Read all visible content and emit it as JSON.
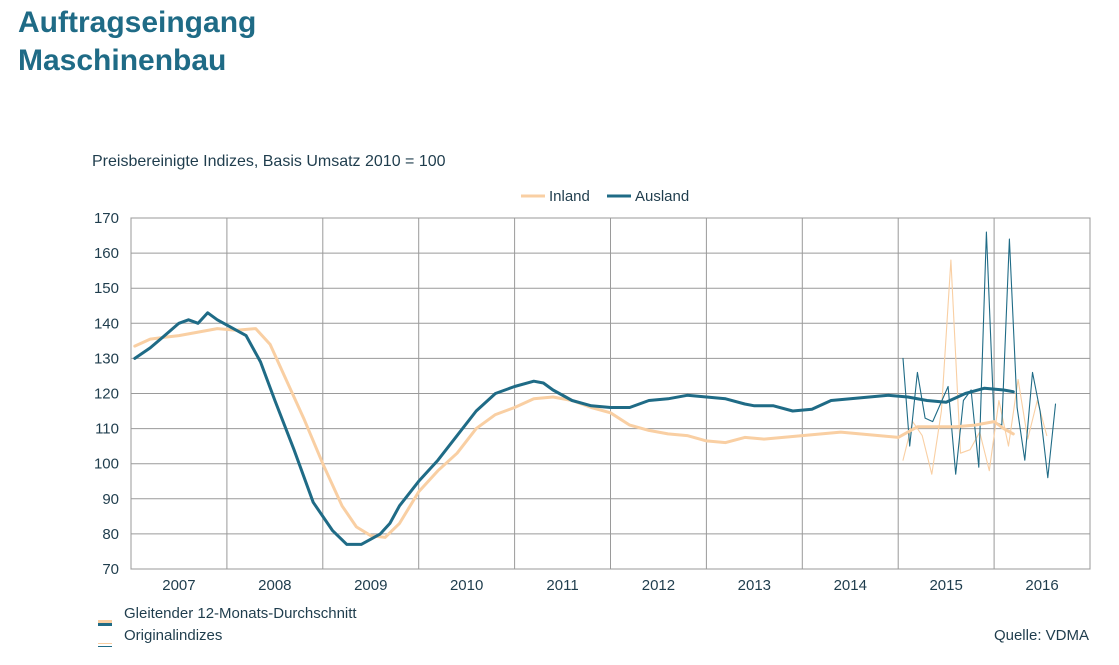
{
  "header": {
    "title_line1": "Auftragseingang",
    "title_line2": "Maschinenbau"
  },
  "chart_data": {
    "type": "line",
    "subtitle": "Preisbereinigte Indizes, Basis Umsatz 2010 = 100",
    "ylim": [
      70,
      170
    ],
    "yticks": [
      70,
      80,
      90,
      100,
      110,
      120,
      130,
      140,
      150,
      160,
      170
    ],
    "xlim": [
      2006.5,
      2016.5
    ],
    "xticks": [
      "2007",
      "2008",
      "2009",
      "2010",
      "2011",
      "2012",
      "2013",
      "2014",
      "2015",
      "2016"
    ],
    "grid": true,
    "legend_top": [
      {
        "name": "Inland",
        "color": "#f9cfa3"
      },
      {
        "name": "Ausland",
        "color": "#1f6b86"
      }
    ],
    "legend_bottom": [
      {
        "name": "Gleitender 12-Monats-Durchschnitt",
        "style": "thick"
      },
      {
        "name": "Originalindizes",
        "style": "thin"
      }
    ],
    "source": "Quelle: VDMA",
    "series": [
      {
        "name": "Inland",
        "kind": "moving_average",
        "color": "#f9cfa3",
        "x": [
          2006.54,
          2006.7,
          2006.85,
          2007.0,
          2007.2,
          2007.4,
          2007.6,
          2007.8,
          2007.95,
          2008.1,
          2008.3,
          2008.5,
          2008.7,
          2008.85,
          2009.0,
          2009.15,
          2009.3,
          2009.5,
          2009.7,
          2009.9,
          2010.1,
          2010.3,
          2010.5,
          2010.7,
          2010.9,
          2011.1,
          2011.3,
          2011.5,
          2011.7,
          2011.9,
          2012.1,
          2012.3,
          2012.5,
          2012.7,
          2012.9,
          2013.1,
          2013.3,
          2013.5,
          2013.7,
          2013.9,
          2014.1,
          2014.3,
          2014.5,
          2014.7,
          2014.9,
          2015.1,
          2015.3,
          2015.5,
          2015.6,
          2015.7
        ],
        "values": [
          133.5,
          135.5,
          136,
          136.5,
          137.5,
          138.5,
          138,
          138.5,
          134,
          125,
          113,
          100,
          88,
          82,
          79.5,
          79,
          83,
          92,
          98,
          103,
          110,
          114,
          116,
          118.5,
          119,
          118,
          116,
          114.5,
          111,
          109.5,
          108.5,
          108,
          106.5,
          106,
          107.5,
          107,
          107.5,
          108,
          108.5,
          109,
          108.5,
          108,
          107.5,
          110.5,
          110.5,
          110.5,
          111,
          112,
          110,
          108.5
        ]
      },
      {
        "name": "Ausland",
        "kind": "moving_average",
        "color": "#1f6b86",
        "x": [
          2006.54,
          2006.7,
          2006.85,
          2007.0,
          2007.1,
          2007.2,
          2007.3,
          2007.4,
          2007.6,
          2007.7,
          2007.85,
          2008.0,
          2008.2,
          2008.4,
          2008.6,
          2008.75,
          2008.9,
          2009.0,
          2009.1,
          2009.2,
          2009.3,
          2009.5,
          2009.7,
          2009.9,
          2010.1,
          2010.3,
          2010.5,
          2010.7,
          2010.8,
          2010.9,
          2011.1,
          2011.3,
          2011.5,
          2011.7,
          2011.9,
          2012.1,
          2012.3,
          2012.5,
          2012.7,
          2012.9,
          2013.0,
          2013.2,
          2013.4,
          2013.6,
          2013.8,
          2014.0,
          2014.2,
          2014.4,
          2014.6,
          2014.8,
          2015.0,
          2015.2,
          2015.4,
          2015.6,
          2015.7
        ],
        "values": [
          130,
          133,
          136.5,
          140,
          141,
          140,
          143,
          141,
          138,
          136.5,
          129,
          118,
          104,
          89,
          81,
          77,
          77,
          78.5,
          80,
          83,
          88,
          95,
          101,
          108,
          115,
          120,
          122,
          123.5,
          123,
          121,
          118,
          116.5,
          116,
          116,
          118,
          118.5,
          119.5,
          119,
          118.5,
          117,
          116.5,
          116.5,
          115,
          115.5,
          118,
          118.5,
          119,
          119.5,
          119,
          118,
          117.5,
          120,
          121.5,
          121,
          120.5
        ]
      },
      {
        "name": "Inland",
        "kind": "original",
        "color": "#f9cfa3",
        "x": [
          2014.55,
          2014.65,
          2014.75,
          2014.85,
          2014.95,
          2015.05,
          2015.15,
          2015.25,
          2015.35,
          2015.45,
          2015.55,
          2015.65,
          2015.75,
          2015.85,
          2015.95,
          2016.05
        ],
        "values": [
          101,
          112,
          108,
          97,
          115,
          158,
          103,
          104,
          109,
          98,
          118,
          105,
          124,
          107,
          118,
          108
        ]
      },
      {
        "name": "Ausland",
        "kind": "original",
        "color": "#1f6b86",
        "x": [
          2014.55,
          2014.62,
          2014.7,
          2014.78,
          2014.86,
          2014.94,
          2015.02,
          2015.1,
          2015.18,
          2015.26,
          2015.34,
          2015.42,
          2015.5,
          2015.58,
          2015.66,
          2015.74,
          2015.82,
          2015.9,
          2015.98,
          2016.06,
          2016.14
        ],
        "values": [
          130,
          105,
          126,
          113,
          112,
          117,
          122,
          97,
          118,
          121,
          99,
          166,
          112,
          111,
          164,
          116,
          101,
          126,
          115,
          96,
          117
        ]
      }
    ]
  }
}
